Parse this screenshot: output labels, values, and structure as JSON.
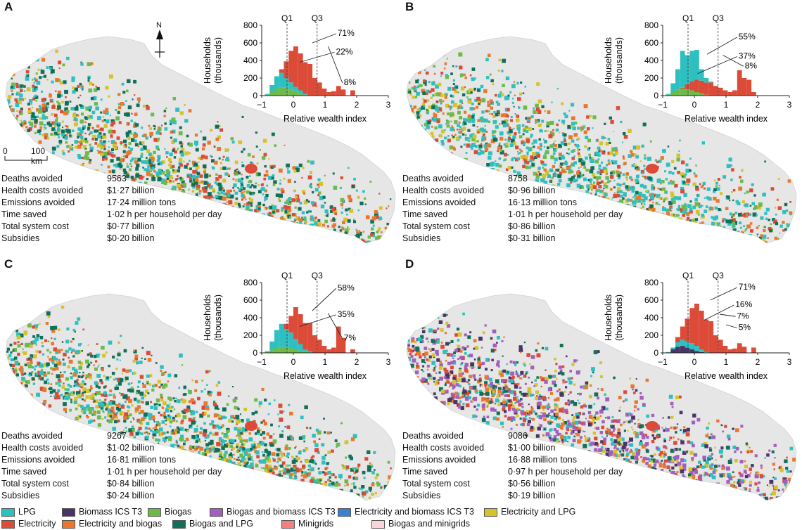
{
  "colors": {
    "LPG": "#2ec0c0",
    "Biomass ICS T3": "#4b3565",
    "Biogas": "#6cbb4a",
    "Biogas and biomass ICS T3": "#a35fbe",
    "Electricity and biomass ICS T3": "#3b7fcf",
    "Electricity and LPG": "#d6c22a",
    "Electricity": "#dc4b38",
    "Electricity and biogas": "#e8792c",
    "Biogas and LPG": "#11705a",
    "Minigrids": "#f28080",
    "Biogas and minigrids": "#fbd3dd",
    "map_background": "#e6e6e6"
  },
  "legend": [
    {
      "label": "LPG",
      "color": "#2ec0c0"
    },
    {
      "label": "Biomass ICS T3",
      "color": "#4b3565"
    },
    {
      "label": "Biogas",
      "color": "#6cbb4a"
    },
    {
      "label": "Biogas and biomass ICS T3",
      "color": "#a35fbe"
    },
    {
      "label": "Electricity and biomass ICS T3",
      "color": "#3b7fcf"
    },
    {
      "label": "Electricity and LPG",
      "color": "#d6c22a"
    },
    {
      "label": "Electricity",
      "color": "#dc4b38"
    },
    {
      "label": "Electricity and biogas",
      "color": "#e8792c"
    },
    {
      "label": "Biogas and LPG",
      "color": "#11705a"
    },
    {
      "label": "Minigrids",
      "color": "#f28080"
    },
    {
      "label": "Biogas and minigrids",
      "color": "#fbd3dd"
    }
  ],
  "map": {
    "north_label": "N",
    "scale_start": "0",
    "scale_end": "100 km"
  },
  "stats_labels": [
    "Deaths avoided",
    "Health costs avoided",
    "Emissions avoided",
    "Time saved",
    "Total system cost",
    "Subsidies"
  ],
  "panels": [
    {
      "letter": "A",
      "stats": [
        "9563",
        "$1·27 billion",
        "17·24 million tons",
        "1·02 h per household per day",
        "$0·77 billion",
        "$0·20 billion"
      ]
    },
    {
      "letter": "B",
      "stats": [
        "8758",
        "$0·96 billion",
        "16·13 million tons",
        "1·01 h per household per day",
        "$0·86 billion",
        "$0·31 billion"
      ]
    },
    {
      "letter": "C",
      "stats": [
        "9267",
        "$1·02 billion",
        "16·81 million tons",
        "1·01 h per household per day",
        "$0·84 billion",
        "$0·24 billion"
      ]
    },
    {
      "letter": "D",
      "stats": [
        "9086",
        "$1·00 billion",
        "16·88 million tons",
        "0·97 h per household per day",
        "$0·56 billion",
        "$0·19 billion"
      ]
    }
  ],
  "chart_data": [
    {
      "type": "bar",
      "panel": "A",
      "xlabel": "Relative wealth index",
      "ylabel": "Households (thousands)",
      "xlim": [
        -1,
        3
      ],
      "ylim": [
        0,
        800
      ],
      "xticks": [
        "−1",
        "0",
        "1",
        "2",
        "3"
      ],
      "yticks": [
        "0",
        "200",
        "400",
        "600",
        "800"
      ],
      "quartiles": [
        {
          "label": "Q1",
          "x": -0.2
        },
        {
          "label": "Q3",
          "x": 0.75
        }
      ],
      "bin_start": -0.9,
      "bin_width": 0.15,
      "series": [
        {
          "technology": "Biogas",
          "values": [
            10,
            40,
            80,
            95,
            90,
            70,
            50,
            30,
            10,
            0,
            0,
            0,
            0,
            0,
            0,
            0,
            0,
            0,
            0,
            0
          ]
        },
        {
          "technology": "LPG",
          "values": [
            20,
            120,
            220,
            260,
            200,
            150,
            100,
            60,
            20,
            0,
            0,
            0,
            0,
            0,
            0,
            0,
            0,
            0,
            0,
            0
          ]
        },
        {
          "technology": "Electricity",
          "values": [
            0,
            60,
            180,
            300,
            390,
            510,
            560,
            480,
            380,
            360,
            200,
            150,
            80,
            40,
            50,
            110,
            70,
            0,
            60,
            0
          ]
        }
      ],
      "annotations": [
        {
          "text": "71%"
        },
        {
          "text": "22%"
        },
        {
          "text": "8%"
        }
      ]
    },
    {
      "type": "bar",
      "panel": "B",
      "xlabel": "Relative wealth index",
      "ylabel": "Households (thousands)",
      "xlim": [
        -1,
        3
      ],
      "ylim": [
        0,
        800
      ],
      "xticks": [
        "−1",
        "0",
        "1",
        "2",
        "3"
      ],
      "yticks": [
        "0",
        "200",
        "400",
        "600",
        "800"
      ],
      "quartiles": [
        {
          "label": "Q1",
          "x": -0.2
        },
        {
          "label": "Q3",
          "x": 0.75
        }
      ],
      "bin_start": -0.9,
      "bin_width": 0.15,
      "series": [
        {
          "technology": "Biogas",
          "values": [
            10,
            40,
            70,
            80,
            75,
            60,
            40,
            25,
            10,
            0,
            0,
            0,
            0,
            0,
            0,
            0,
            0,
            0,
            0,
            0
          ]
        },
        {
          "technology": "Electricity",
          "values": [
            0,
            20,
            60,
            90,
            130,
            160,
            180,
            170,
            150,
            150,
            110,
            90,
            60,
            40,
            60,
            290,
            200,
            180,
            40,
            0
          ]
        },
        {
          "technology": "LPG",
          "values": [
            20,
            140,
            300,
            510,
            460,
            510,
            520,
            300,
            200,
            160,
            30,
            10,
            0,
            0,
            0,
            0,
            0,
            0,
            0,
            0
          ]
        }
      ],
      "annotations": [
        {
          "text": "55%"
        },
        {
          "text": "37%"
        },
        {
          "text": "8%"
        }
      ]
    },
    {
      "type": "bar",
      "panel": "C",
      "xlabel": "Relative wealth index",
      "ylabel": "Households (thousands)",
      "xlim": [
        -1,
        3
      ],
      "ylim": [
        0,
        800
      ],
      "xticks": [
        "−1",
        "0",
        "1",
        "2",
        "3"
      ],
      "yticks": [
        "0",
        "200",
        "400",
        "600",
        "800"
      ],
      "quartiles": [
        {
          "label": "Q1",
          "x": -0.2
        },
        {
          "label": "Q3",
          "x": 0.75
        }
      ],
      "bin_start": -0.9,
      "bin_width": 0.15,
      "series": [
        {
          "technology": "Biogas",
          "values": [
            10,
            30,
            60,
            70,
            65,
            55,
            40,
            25,
            10,
            0,
            0,
            0,
            0,
            0,
            0,
            0,
            0,
            0,
            0,
            0
          ]
        },
        {
          "technology": "LPG",
          "values": [
            20,
            130,
            260,
            330,
            270,
            230,
            160,
            100,
            40,
            20,
            0,
            0,
            0,
            0,
            0,
            0,
            0,
            0,
            0,
            0
          ]
        },
        {
          "technology": "Electricity",
          "values": [
            0,
            40,
            150,
            260,
            330,
            420,
            520,
            440,
            340,
            340,
            200,
            150,
            80,
            40,
            60,
            300,
            170,
            0,
            40,
            0
          ]
        }
      ],
      "annotations": [
        {
          "text": "58%"
        },
        {
          "text": "35%"
        },
        {
          "text": "7%"
        }
      ]
    },
    {
      "type": "bar",
      "panel": "D",
      "xlabel": "Relative wealth index",
      "ylabel": "Households (thousands)",
      "xlim": [
        -1,
        3
      ],
      "ylim": [
        0,
        800
      ],
      "xticks": [
        "−1",
        "0",
        "1",
        "2",
        "3"
      ],
      "yticks": [
        "0",
        "200",
        "400",
        "600",
        "800"
      ],
      "quartiles": [
        {
          "label": "Q1",
          "x": -0.2
        },
        {
          "label": "Q3",
          "x": 0.75
        }
      ],
      "bin_start": -0.9,
      "bin_width": 0.15,
      "series": [
        {
          "technology": "Biomass ICS T3",
          "values": [
            5,
            40,
            70,
            80,
            60,
            40,
            20,
            10,
            0,
            0,
            0,
            0,
            0,
            0,
            0,
            0,
            0,
            0,
            0,
            0
          ]
        },
        {
          "technology": "Biogas",
          "values": [
            5,
            20,
            40,
            45,
            40,
            30,
            25,
            15,
            5,
            0,
            0,
            0,
            0,
            0,
            0,
            0,
            0,
            0,
            0,
            0
          ]
        },
        {
          "technology": "LPG",
          "values": [
            10,
            60,
            120,
            150,
            130,
            110,
            80,
            40,
            10,
            0,
            0,
            0,
            0,
            0,
            0,
            0,
            0,
            0,
            0,
            0
          ]
        },
        {
          "technology": "Electricity",
          "values": [
            0,
            60,
            180,
            300,
            390,
            510,
            560,
            480,
            380,
            360,
            200,
            150,
            80,
            40,
            50,
            110,
            70,
            0,
            60,
            0
          ]
        }
      ],
      "annotations": [
        {
          "text": "71%"
        },
        {
          "text": "16%"
        },
        {
          "text": "7%"
        },
        {
          "text": "5%"
        }
      ]
    }
  ]
}
